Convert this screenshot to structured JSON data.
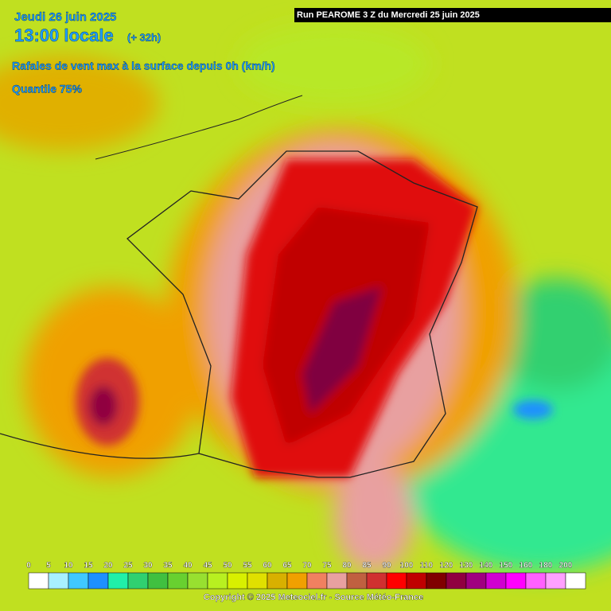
{
  "header": {
    "date": "Jeudi 26 juin 2025",
    "time": "13:00 locale",
    "lead": "(+ 32h)",
    "title": "Rafales de vent max à la surface depuis 0h (km/h)",
    "quantile": "Quantile 75%"
  },
  "run_label": "Run PEAROME 3 Z du Mercredi 25 juin 2025",
  "legend": {
    "labels": [
      "0",
      "5",
      "10",
      "15",
      "20",
      "25",
      "30",
      "35",
      "40",
      "45",
      "50",
      "55",
      "60",
      "65",
      "70",
      "75",
      "80",
      "85",
      "90",
      "100",
      "110",
      "120",
      "130",
      "140",
      "150",
      "160",
      "180",
      "200"
    ],
    "colors": [
      "#ffffff",
      "#a8f0ff",
      "#40c8ff",
      "#1e90ff",
      "#20f0a8",
      "#30d070",
      "#40c040",
      "#68d030",
      "#98e030",
      "#b8f020",
      "#d8f000",
      "#e0e000",
      "#d8b000",
      "#f0a000",
      "#f08060",
      "#e8a0a0",
      "#c06040",
      "#d03030",
      "#ff0000",
      "#c00000",
      "#800000",
      "#900040",
      "#a00080",
      "#d000d0",
      "#ff00ff",
      "#ff60ff",
      "#ffa0ff",
      "#ffffff"
    ]
  },
  "copyright": "Copyright © 2025 Meteociel.fr - Source Météo-France"
}
